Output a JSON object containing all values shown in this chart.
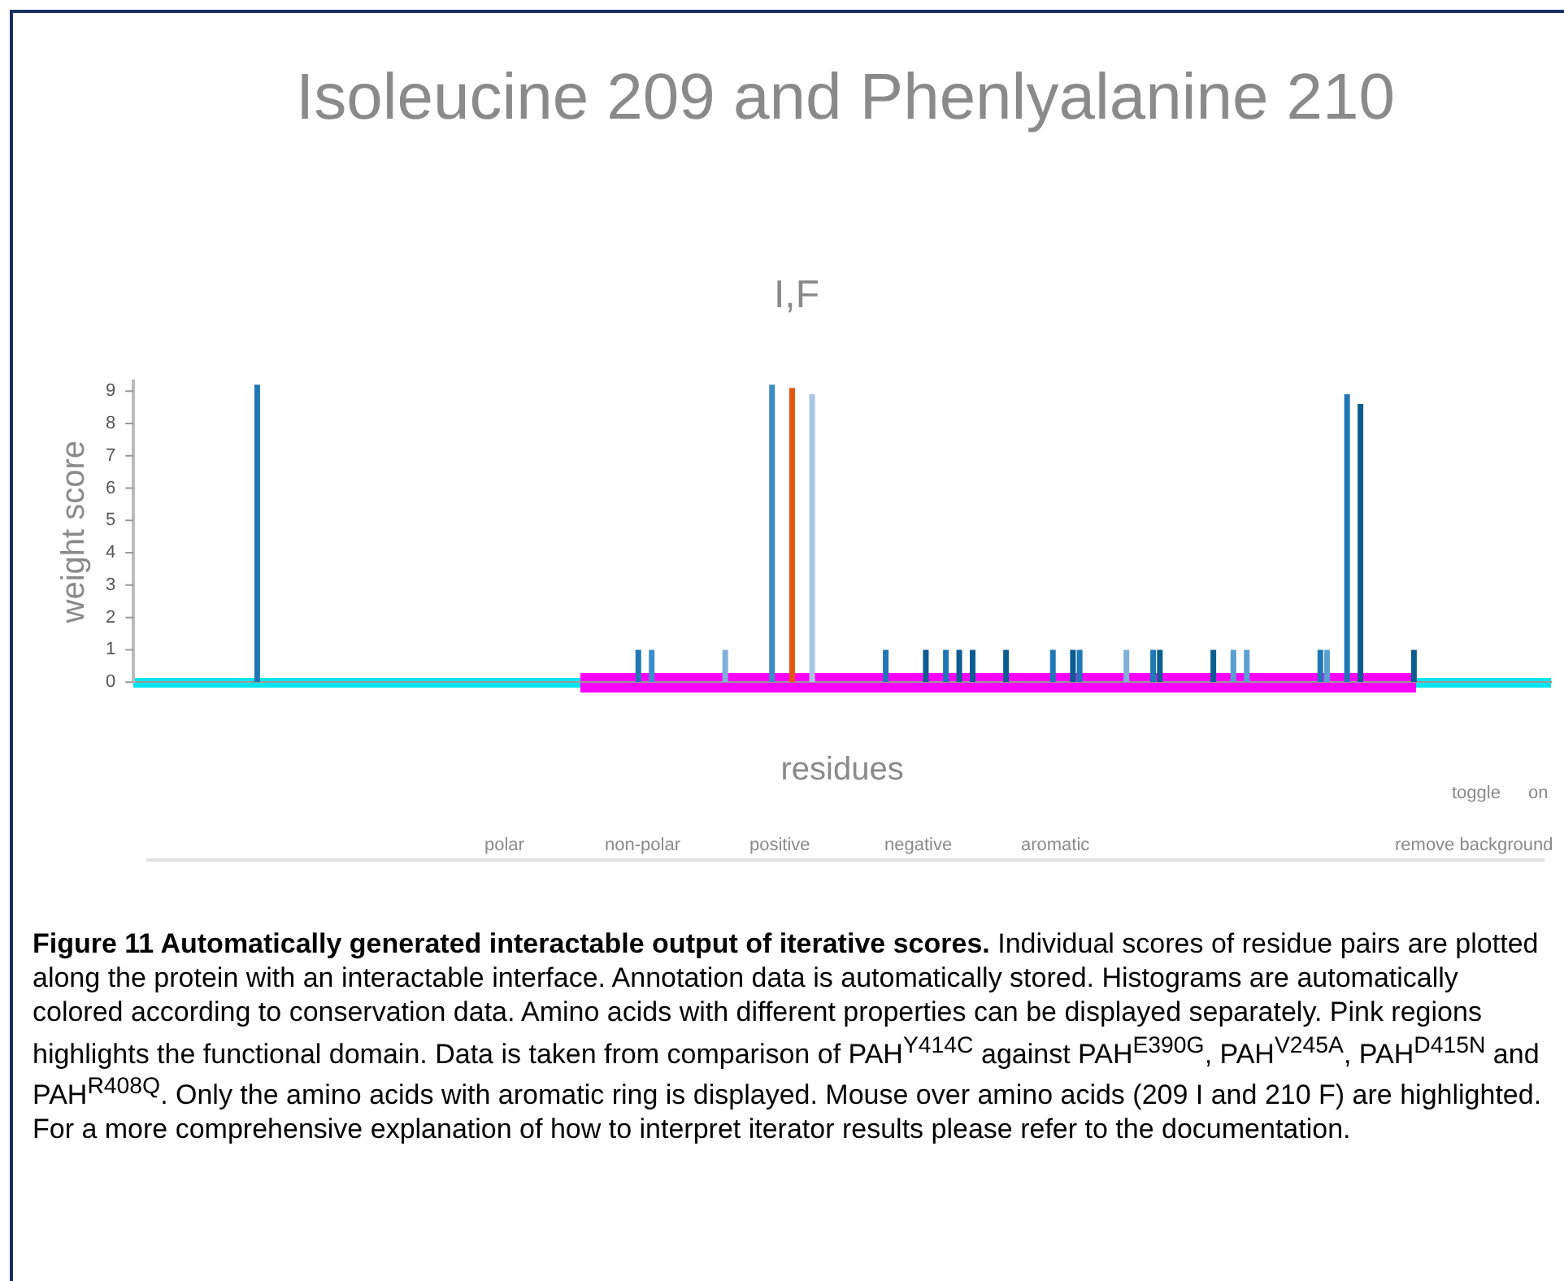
{
  "chart_data": {
    "type": "bar",
    "title": "Isoleucine 209 and Phenlyalanine 210",
    "subtitle": "I,F",
    "xlabel": "residues",
    "ylabel": "weight score",
    "categories": [
      null,
      null,
      null,
      null,
      null,
      null,
      null,
      null,
      null,
      null,
      null,
      null,
      null,
      null,
      null,
      null,
      null,
      null,
      null,
      null,
      null,
      null,
      null,
      null,
      null,
      null,
      null,
      null,
      null,
      null,
      null,
      null,
      null,
      null,
      null,
      null,
      null,
      null,
      null,
      null,
      null,
      null,
      null,
      null,
      null,
      null,
      null,
      null,
      null,
      null,
      null,
      null,
      null,
      null,
      null,
      null,
      null,
      null,
      null,
      null,
      null,
      null,
      null,
      null,
      null,
      null,
      null,
      null,
      null,
      null,
      null,
      null,
      null,
      null,
      null,
      null,
      null,
      null,
      null,
      null,
      null,
      null,
      null,
      null,
      null,
      null,
      null,
      null,
      null,
      null,
      null,
      null,
      null,
      null,
      null,
      null,
      null,
      null,
      null,
      null,
      null,
      null,
      null,
      null,
      null,
      null,
      null,
      null,
      null,
      null,
      null,
      null,
      null,
      null,
      null,
      null,
      null,
      null,
      null,
      null,
      null,
      null,
      null,
      null,
      null,
      null,
      null,
      null,
      null,
      null,
      null,
      null,
      null,
      null,
      null,
      null,
      null,
      null,
      null,
      null,
      null,
      null,
      null,
      null,
      null,
      null,
      null,
      null,
      null,
      null,
      null,
      null,
      null,
      null,
      null,
      null,
      null,
      null,
      null,
      null,
      null,
      null,
      null,
      null,
      null,
      null,
      null,
      null,
      null,
      null,
      null,
      null,
      null,
      null,
      null,
      null,
      null,
      null,
      null,
      null,
      null,
      null,
      null,
      null,
      null,
      null,
      null,
      null,
      null,
      null,
      null,
      null,
      null,
      null,
      null,
      null,
      null,
      null,
      null,
      null,
      null,
      null,
      null,
      null,
      null,
      null,
      null,
      null,
      null,
      null,
      null,
      null
    ],
    "values": [
      null,
      null,
      null,
      null,
      null,
      null,
      null,
      null,
      null,
      null,
      null,
      null,
      null,
      null,
      null,
      null,
      null,
      null,
      9.2,
      null,
      null,
      null,
      null,
      null,
      null,
      null,
      null,
      null,
      null,
      null,
      null,
      null,
      null,
      null,
      null,
      null,
      null,
      null,
      null,
      null,
      null,
      null,
      null,
      null,
      null,
      null,
      null,
      null,
      null,
      null,
      null,
      null,
      null,
      null,
      null,
      null,
      null,
      null,
      null,
      null,
      null,
      null,
      null,
      null,
      null,
      null,
      null,
      null,
      null,
      null,
      null,
      null,
      null,
      null,
      null,
      1,
      null,
      1,
      null,
      null,
      null,
      null,
      null,
      null,
      null,
      null,
      null,
      null,
      1,
      null,
      null,
      null,
      null,
      null,
      null,
      9.2,
      null,
      null,
      9.1,
      null,
      null,
      8.9,
      null,
      null,
      null,
      null,
      null,
      null,
      null,
      null,
      null,
      null,
      1,
      null,
      null,
      null,
      null,
      null,
      1,
      null,
      null,
      1,
      null,
      1,
      null,
      1,
      null,
      null,
      null,
      null,
      1,
      null,
      null,
      null,
      null,
      null,
      null,
      1,
      null,
      null,
      1,
      1,
      null,
      null,
      null,
      null,
      null,
      null,
      1,
      null,
      null,
      null,
      1,
      1,
      null,
      null,
      null,
      null,
      null,
      null,
      null,
      1,
      null,
      null,
      1,
      null,
      1,
      null,
      null,
      null,
      null,
      null,
      null,
      null,
      null,
      null,
      null,
      1,
      1,
      null,
      null,
      8.9,
      null,
      8.6,
      null,
      null,
      null,
      null,
      null,
      null,
      null,
      1,
      null,
      null,
      null,
      null,
      null,
      null,
      null,
      null,
      null,
      null,
      null,
      null,
      null,
      null,
      null,
      null,
      null,
      null,
      null,
      null
    ],
    "colors": [
      null,
      null,
      null,
      null,
      null,
      null,
      null,
      null,
      null,
      null,
      null,
      null,
      null,
      null,
      null,
      null,
      null,
      null,
      "#1f77b4",
      null,
      null,
      null,
      null,
      null,
      null,
      null,
      null,
      null,
      null,
      null,
      null,
      null,
      null,
      null,
      null,
      null,
      null,
      null,
      null,
      null,
      null,
      null,
      null,
      null,
      null,
      null,
      null,
      null,
      null,
      null,
      null,
      null,
      null,
      null,
      null,
      null,
      null,
      null,
      null,
      null,
      null,
      null,
      null,
      null,
      null,
      null,
      null,
      null,
      null,
      null,
      null,
      null,
      null,
      null,
      null,
      "#1f77b4",
      null,
      "#3a8fd0",
      null,
      null,
      null,
      null,
      null,
      null,
      null,
      null,
      null,
      null,
      "#7fb0d8",
      null,
      null,
      null,
      null,
      null,
      null,
      "#3b8cc4",
      null,
      null,
      "#e6550d",
      null,
      null,
      "#a9c4e4",
      null,
      null,
      null,
      null,
      null,
      null,
      null,
      null,
      null,
      null,
      "#1f77b4",
      null,
      null,
      null,
      null,
      null,
      "#0d5c91",
      null,
      null,
      "#1f77b4",
      null,
      "#0d5c91",
      null,
      "#0d5c91",
      null,
      null,
      null,
      null,
      "#0d5c91",
      null,
      null,
      null,
      null,
      null,
      null,
      "#1f77b4",
      null,
      null,
      "#0d5c91",
      "#1f77b4",
      null,
      null,
      null,
      null,
      null,
      null,
      "#7fb0d8",
      null,
      null,
      null,
      "#1f77b4",
      "#0d5c91",
      null,
      null,
      null,
      null,
      null,
      null,
      null,
      "#0d5c91",
      null,
      null,
      "#5a9fd0",
      null,
      "#5a9fd0",
      null,
      null,
      null,
      null,
      null,
      null,
      null,
      null,
      null,
      null,
      "#1f77b4",
      "#5a9fd0",
      null,
      null,
      "#1f77b4",
      null,
      "#0d5c91",
      null,
      null,
      null,
      null,
      null,
      null,
      null,
      "#0d5c91",
      null,
      null,
      null,
      null,
      null,
      null,
      null,
      null,
      null,
      null,
      null,
      null,
      null,
      null,
      null,
      null,
      null,
      null,
      null,
      null
    ],
    "ylim": [
      0,
      9.3
    ],
    "yticks": [
      0,
      1,
      2,
      3,
      4,
      5,
      6,
      7,
      8,
      9
    ],
    "grid": false,
    "legend": false,
    "annotations": [
      "toggle",
      "on",
      "polar",
      "non-polar",
      "positive",
      "negative",
      "aromatic",
      "remove background",
      "Figure 11 Automatically generated interactable output of iterative scores.",
      "Individual scores of residue pairs are plotted along the protein with an interactable interface. Annotation data is automatically stored. Histograms are automatically colored according to conservation data. Amino acids with different properties can be displayed separately. Pink regions highlights the functional domain. Data is taken from comparison of PAH$^{Y414C}$ against PAH$^{E390G}$, PAH$^{V245A}$, PAH$^{D415N}$ and PAH$^{R408Q}$. Only the amino acids with aromatic ring is displayed. Mouse over amino acids (209 I and 210 F) are highlighted. For a more comprehensive explanation of how to interpret iterator results please refer to the documentation."
    ]
  }
}
